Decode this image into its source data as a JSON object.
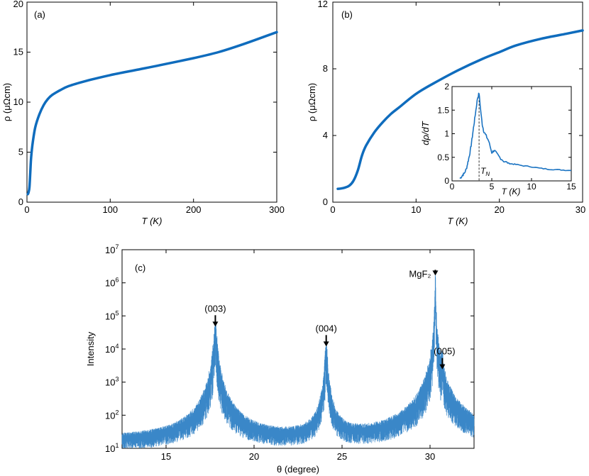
{
  "chart_data": [
    {
      "panel": "(a)",
      "type": "line",
      "xlabel": "T (K)",
      "ylabel": "ρ (μΩcm)",
      "xlim": [
        0,
        300
      ],
      "ylim": [
        0,
        20
      ],
      "xticks": [
        0,
        100,
        200,
        300
      ],
      "yticks": [
        0,
        5,
        10,
        15,
        20
      ],
      "grid": false,
      "color": "#0f6cbd",
      "x": [
        1,
        2,
        3,
        4,
        5,
        7,
        10,
        15,
        20,
        25,
        30,
        40,
        50,
        70,
        100,
        130,
        160,
        200,
        230,
        260,
        300
      ],
      "y": [
        0.8,
        1.0,
        1.5,
        3.0,
        4.5,
        6.0,
        7.5,
        8.8,
        9.7,
        10.3,
        10.7,
        11.2,
        11.6,
        12.1,
        12.7,
        13.2,
        13.7,
        14.4,
        15.0,
        15.8,
        17.0
      ]
    },
    {
      "panel": "(b)",
      "type": "line",
      "xlabel": "T (K)",
      "ylabel": "ρ (μΩcm)",
      "xlim": [
        0,
        30
      ],
      "ylim": [
        0,
        12
      ],
      "xticks": [
        0,
        10,
        20,
        30
      ],
      "yticks": [
        0,
        4,
        8,
        12
      ],
      "grid": false,
      "color": "#0f6cbd",
      "x": [
        0.6,
        1,
        1.5,
        2,
        2.5,
        3,
        3.5,
        4,
        5,
        6,
        7,
        8,
        10,
        12,
        15,
        18,
        20,
        22,
        25,
        28,
        30
      ],
      "y": [
        0.8,
        0.82,
        0.88,
        1.0,
        1.3,
        1.9,
        2.8,
        3.4,
        4.2,
        4.8,
        5.3,
        5.7,
        6.5,
        7.1,
        7.9,
        8.6,
        9.0,
        9.4,
        9.8,
        10.1,
        10.3
      ],
      "inset": {
        "type": "line",
        "xlabel": "T (K)",
        "ylabel": "dρ/dT",
        "xlim": [
          0,
          15
        ],
        "ylim": [
          0,
          2
        ],
        "xticks": [
          0,
          5,
          10,
          15
        ],
        "yticks": [
          0,
          0.5,
          1,
          1.5,
          2
        ],
        "ytick_labels": [
          "0",
          "0.5",
          "1",
          "1.5",
          "2"
        ],
        "annotation": "T_N",
        "annotation_main": "T",
        "annotation_sub": "N",
        "tn_x": 3.4,
        "x": [
          1.0,
          1.3,
          1.5,
          1.8,
          2.0,
          2.2,
          2.4,
          2.6,
          2.8,
          3.0,
          3.2,
          3.4,
          3.6,
          3.8,
          4.0,
          4.3,
          4.6,
          5.0,
          5.3,
          5.6,
          6.0,
          6.5,
          7.0,
          7.5,
          8.0,
          9.0,
          10.0,
          11.0,
          12.0,
          13.0,
          14.0,
          15.0
        ],
        "y": [
          0.05,
          0.12,
          0.15,
          0.25,
          0.4,
          0.55,
          0.75,
          1.0,
          1.25,
          1.5,
          1.75,
          1.86,
          1.5,
          1.2,
          1.05,
          0.95,
          0.85,
          0.6,
          0.65,
          0.58,
          0.5,
          0.42,
          0.38,
          0.36,
          0.35,
          0.32,
          0.3,
          0.27,
          0.25,
          0.24,
          0.23,
          0.22
        ]
      }
    },
    {
      "panel": "(c)",
      "type": "line",
      "xlabel": "θ (degree)",
      "ylabel": "Intensity",
      "scale_y": "log",
      "xlim": [
        12.5,
        32.5
      ],
      "ylim_log10": [
        1,
        7
      ],
      "xticks": [
        15,
        20,
        25,
        30
      ],
      "yticks_log10": [
        1,
        2,
        3,
        4,
        5,
        6,
        7
      ],
      "color": "#3a87c8",
      "peaks": [
        {
          "label": "(003)",
          "x": 17.8,
          "log10_intensity": 4.55
        },
        {
          "label": "(004)",
          "x": 24.1,
          "log10_intensity": 3.95
        },
        {
          "label": "MgF₂",
          "x": 30.3,
          "log10_intensity": 6.05
        },
        {
          "label": "(005)",
          "x": 30.7,
          "log10_intensity": 3.3
        }
      ],
      "background_log10": 1.2
    }
  ]
}
